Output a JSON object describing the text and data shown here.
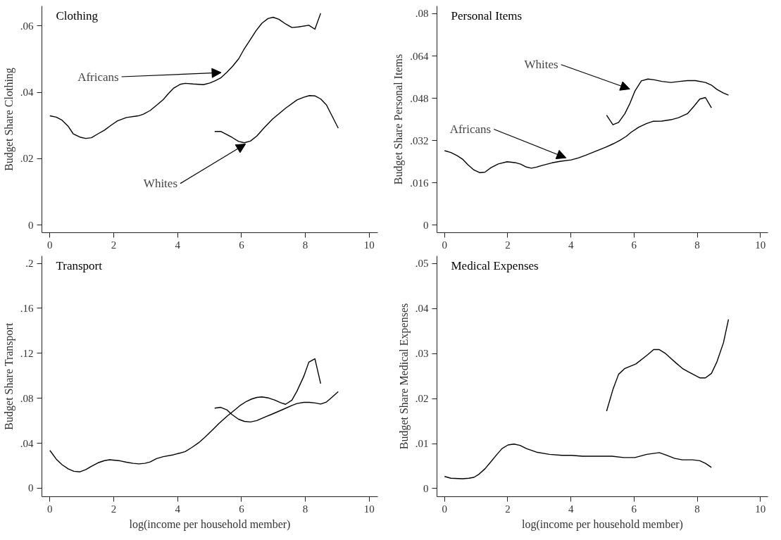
{
  "chart_data": [
    {
      "type": "line",
      "title": "Clothing",
      "ylabel": "Budget Share Clothing",
      "xlim": [
        -0.25,
        10.27
      ],
      "ylim": [
        -0.0023,
        0.066
      ],
      "xticks": [
        0,
        2,
        4,
        6,
        8,
        10
      ],
      "yticks": [
        {
          "value": 0,
          "label": "0"
        },
        {
          "value": 0.02,
          "label": ".02"
        },
        {
          "value": 0.04,
          "label": ".04"
        },
        {
          "value": 0.06,
          "label": ".06"
        }
      ],
      "grid": false,
      "line_style": "solid",
      "marker": "none",
      "annotations": [
        {
          "text": "Africans",
          "x": 5.54,
          "y": 0.046
        },
        {
          "text": "Whites",
          "x": 6.28,
          "y": 0.0253
        }
      ],
      "series": [
        {
          "color": "#000000",
          "x": [
            0,
            0.2,
            0.38,
            0.57,
            0.73,
            0.94,
            1.12,
            1.3,
            1.51,
            1.71,
            1.92,
            2.12,
            2.4,
            2.77,
            2.93,
            3.14,
            3.34,
            3.55,
            3.71,
            3.87,
            4.08,
            4.24,
            4.48,
            4.81,
            5.01,
            5.18,
            5.36,
            5.54,
            5.72,
            5.92,
            6.07,
            6.28,
            6.46,
            6.64,
            6.83,
            6.99,
            7.17,
            7.38,
            7.58,
            7.78,
            8.11,
            8.3,
            8.48
          ],
          "values": [
            0.0329,
            0.0325,
            0.0316,
            0.0298,
            0.0275,
            0.0265,
            0.0261,
            0.0263,
            0.0275,
            0.0286,
            0.0301,
            0.0314,
            0.0324,
            0.0329,
            0.0334,
            0.0345,
            0.0361,
            0.0378,
            0.0396,
            0.0412,
            0.0424,
            0.0427,
            0.0425,
            0.0423,
            0.0428,
            0.0435,
            0.0444,
            0.046,
            0.0478,
            0.0502,
            0.0528,
            0.0559,
            0.0586,
            0.0608,
            0.0622,
            0.0626,
            0.062,
            0.0606,
            0.0595,
            0.0597,
            0.0602,
            0.059,
            0.0638
          ]
        },
        {
          "color": "#000000",
          "x": [
            5.16,
            5.35,
            5.69,
            5.91,
            6.09,
            6.28,
            6.48,
            6.72,
            6.97,
            7.38,
            7.74,
            7.95,
            8.13,
            8.31,
            8.48,
            8.66,
            8.84,
            9.03
          ],
          "values": [
            0.0282,
            0.0282,
            0.0265,
            0.0252,
            0.0248,
            0.0253,
            0.0268,
            0.0294,
            0.0319,
            0.0352,
            0.0377,
            0.0385,
            0.039,
            0.0389,
            0.038,
            0.0362,
            0.0328,
            0.0292
          ]
        }
      ]
    },
    {
      "type": "line",
      "title": "Personal Items",
      "ylabel": "Budget Share Personal Items",
      "xlim": [
        -0.24,
        10.24
      ],
      "ylim": [
        -0.0028,
        0.0829
      ],
      "xticks": [
        0,
        2,
        4,
        6,
        8,
        10
      ],
      "yticks": [
        {
          "value": 0,
          "label": "0"
        },
        {
          "value": 0.016,
          "label": ".016"
        },
        {
          "value": 0.032,
          "label": ".032"
        },
        {
          "value": 0.048,
          "label": ".048"
        },
        {
          "value": 0.064,
          "label": ".064"
        },
        {
          "value": 0.08,
          "label": ".08"
        }
      ],
      "grid": false,
      "line_style": "solid",
      "marker": "none",
      "annotations": [
        {
          "text": "Whites",
          "x": 6.03,
          "y": 0.0508
        },
        {
          "text": "Africans",
          "x": 4.01,
          "y": 0.0247
        }
      ],
      "series": [
        {
          "color": "#000000",
          "x": [
            0,
            0.2,
            0.4,
            0.57,
            0.74,
            0.93,
            1.11,
            1.28,
            1.47,
            1.7,
            1.98,
            2.23,
            2.41,
            2.57,
            2.75,
            2.91,
            3.12,
            3.4,
            3.68,
            4.01,
            4.25,
            4.49,
            4.78,
            5.1,
            5.34,
            5.55,
            5.75,
            5.91,
            6.15,
            6.4,
            6.6,
            6.88,
            7.17,
            7.41,
            7.69,
            7.89,
            8.08,
            8.26,
            8.45
          ],
          "values": [
            0.0282,
            0.0275,
            0.0263,
            0.025,
            0.0229,
            0.0209,
            0.0199,
            0.0201,
            0.0218,
            0.0232,
            0.024,
            0.0237,
            0.0231,
            0.0221,
            0.0216,
            0.022,
            0.0227,
            0.0236,
            0.0242,
            0.0247,
            0.0255,
            0.0266,
            0.028,
            0.0295,
            0.0308,
            0.0321,
            0.0336,
            0.0352,
            0.0371,
            0.0385,
            0.0393,
            0.0394,
            0.0399,
            0.0407,
            0.0422,
            0.0449,
            0.0477,
            0.0483,
            0.0444
          ]
        },
        {
          "color": "#000000",
          "x": [
            5.13,
            5.33,
            5.51,
            5.71,
            5.87,
            6.03,
            6.23,
            6.44,
            6.64,
            6.88,
            7.17,
            7.45,
            7.69,
            7.94,
            8.26,
            8.46,
            8.62,
            8.83,
            8.99
          ],
          "values": [
            0.0416,
            0.038,
            0.0389,
            0.0422,
            0.0461,
            0.0508,
            0.0546,
            0.0553,
            0.055,
            0.0544,
            0.054,
            0.0544,
            0.0547,
            0.0547,
            0.054,
            0.0529,
            0.0514,
            0.05,
            0.0492
          ]
        }
      ]
    },
    {
      "type": "line",
      "title": "Transport",
      "ylabel": "Budget Share Transport",
      "xlabel": "log(income per household member)",
      "xlim": [
        -0.25,
        10.27
      ],
      "ylim": [
        -0.0076,
        0.2066
      ],
      "xticks": [
        0,
        2,
        4,
        6,
        8,
        10
      ],
      "yticks": [
        {
          "value": 0,
          "label": "0"
        },
        {
          "value": 0.04,
          "label": ".04"
        },
        {
          "value": 0.08,
          "label": ".08"
        },
        {
          "value": 0.12,
          "label": ".12"
        },
        {
          "value": 0.16,
          "label": ".16"
        },
        {
          "value": 0.2,
          "label": ".2"
        }
      ],
      "grid": false,
      "line_style": "solid",
      "marker": "none",
      "series": [
        {
          "color": "#000000",
          "x": [
            0,
            0.2,
            0.38,
            0.57,
            0.75,
            0.94,
            1.12,
            1.3,
            1.51,
            1.71,
            1.87,
            2.2,
            2.4,
            2.61,
            2.79,
            2.97,
            3.14,
            3.34,
            3.55,
            3.87,
            4.03,
            4.24,
            4.44,
            4.65,
            4.85,
            5.09,
            5.3,
            5.54,
            5.75,
            5.95,
            6.15,
            6.32,
            6.48,
            6.64,
            6.85,
            7.05,
            7.22,
            7.38,
            7.58,
            7.74,
            7.95,
            8.11,
            8.3,
            8.48
          ],
          "values": [
            0.0336,
            0.0258,
            0.0209,
            0.0172,
            0.015,
            0.0145,
            0.0164,
            0.0194,
            0.0226,
            0.0245,
            0.0253,
            0.0243,
            0.0231,
            0.0221,
            0.0216,
            0.0221,
            0.0233,
            0.0263,
            0.028,
            0.0297,
            0.0309,
            0.0326,
            0.0361,
            0.0402,
            0.0452,
            0.0518,
            0.0577,
            0.0638,
            0.0687,
            0.0734,
            0.0771,
            0.0793,
            0.0807,
            0.0812,
            0.0802,
            0.0783,
            0.0761,
            0.0746,
            0.0783,
            0.0864,
            0.0994,
            0.1121,
            0.1151,
            0.093
          ]
        },
        {
          "color": "#000000",
          "x": [
            5.16,
            5.35,
            5.54,
            5.7,
            5.91,
            6.09,
            6.28,
            6.48,
            6.72,
            6.97,
            7.29,
            7.58,
            7.74,
            7.95,
            8.13,
            8.31,
            8.48,
            8.66,
            8.84,
            9.03
          ],
          "values": [
            0.0712,
            0.0719,
            0.0697,
            0.0655,
            0.0613,
            0.0594,
            0.0589,
            0.0601,
            0.0631,
            0.066,
            0.0699,
            0.0736,
            0.0753,
            0.0763,
            0.0763,
            0.0758,
            0.0748,
            0.0766,
            0.081,
            0.0859
          ]
        }
      ]
    },
    {
      "type": "line",
      "title": "Medical Expenses",
      "ylabel": "Budget Share Medical Expenses",
      "xlabel": "log(income per household member)",
      "xlim": [
        -0.24,
        10.24
      ],
      "ylim": [
        -0.0018,
        0.0517
      ],
      "xticks": [
        0,
        2,
        4,
        6,
        8,
        10
      ],
      "yticks": [
        {
          "value": 0,
          "label": "0"
        },
        {
          "value": 0.01,
          "label": ".01"
        },
        {
          "value": 0.02,
          "label": ".02"
        },
        {
          "value": 0.03,
          "label": ".03"
        },
        {
          "value": 0.04,
          "label": ".04"
        },
        {
          "value": 0.05,
          "label": ".05"
        }
      ],
      "grid": false,
      "line_style": "solid",
      "marker": "none",
      "series": [
        {
          "color": "#000000",
          "x": [
            0,
            0.2,
            0.57,
            0.77,
            0.93,
            1.09,
            1.28,
            1.46,
            1.66,
            1.82,
            2.01,
            2.2,
            2.39,
            2.59,
            2.91,
            3.32,
            3.72,
            4.01,
            4.37,
            4.86,
            5.3,
            5.67,
            6.03,
            6.4,
            6.6,
            6.8,
            7.0,
            7.29,
            7.53,
            7.85,
            8.08,
            8.26,
            8.45
          ],
          "values": [
            0.0027,
            0.0023,
            0.0022,
            0.0023,
            0.0025,
            0.0032,
            0.0044,
            0.0059,
            0.0076,
            0.0089,
            0.0097,
            0.0099,
            0.0096,
            0.0089,
            0.0081,
            0.0076,
            0.0074,
            0.0074,
            0.0072,
            0.0072,
            0.0072,
            0.0069,
            0.0069,
            0.0076,
            0.0078,
            0.008,
            0.0075,
            0.0067,
            0.0064,
            0.0064,
            0.0062,
            0.0056,
            0.0047
          ]
        },
        {
          "color": "#000000",
          "x": [
            5.13,
            5.33,
            5.51,
            5.71,
            6.06,
            6.44,
            6.62,
            6.79,
            6.98,
            7.33,
            7.53,
            7.73,
            8.08,
            8.26,
            8.45,
            8.62,
            8.83,
            8.99
          ],
          "values": [
            0.0172,
            0.022,
            0.0254,
            0.0267,
            0.0277,
            0.0298,
            0.0309,
            0.0309,
            0.0301,
            0.0279,
            0.0267,
            0.0259,
            0.0246,
            0.0246,
            0.0256,
            0.0281,
            0.0324,
            0.0376
          ]
        }
      ]
    }
  ]
}
